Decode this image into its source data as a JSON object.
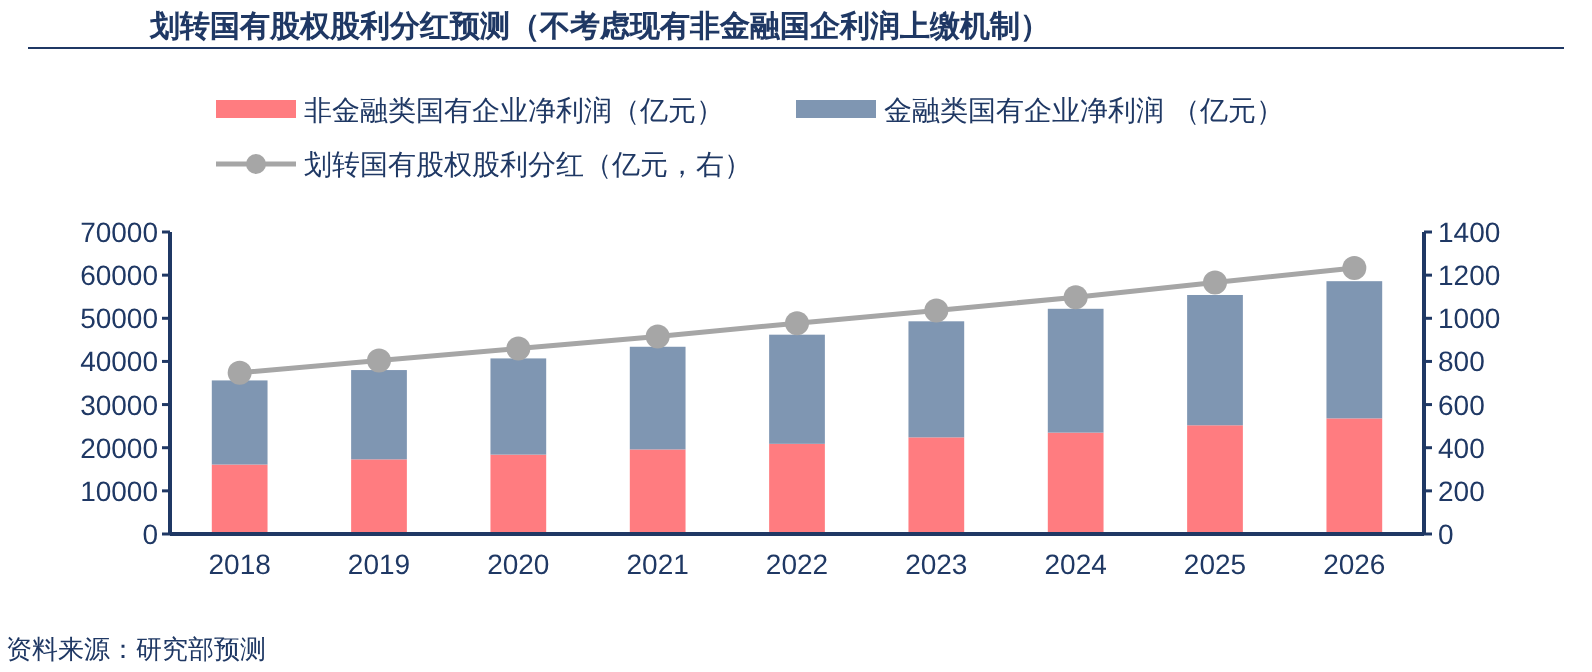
{
  "chart_data": {
    "type": "bar",
    "title": "划转国有股权股利分红预测（不考虑现有非金融国企利润上缴机制）",
    "categories": [
      "2018",
      "2019",
      "2020",
      "2021",
      "2022",
      "2023",
      "2024",
      "2025",
      "2026"
    ],
    "stacked": true,
    "series": [
      {
        "name": "非金融类国有企业净利润（亿元）",
        "color": "#ff7c80",
        "values": [
          16100,
          17300,
          18400,
          19600,
          20900,
          22400,
          23500,
          25200,
          26800
        ]
      },
      {
        "name": "金融类国有企业净利润 （亿元）",
        "color": "#7f96b2",
        "values": [
          19500,
          20700,
          22300,
          23800,
          25300,
          26900,
          28700,
          30200,
          31800
        ]
      },
      {
        "name": "划转国有股权股利分红（亿元，右）",
        "type": "line",
        "axis": "y2",
        "color": "#a6a6a6",
        "values": [
          748,
          804,
          860,
          916,
          977,
          1036,
          1098,
          1166,
          1233
        ]
      }
    ],
    "ylim": [
      0,
      70000
    ],
    "yticks": [
      0,
      10000,
      20000,
      30000,
      40000,
      50000,
      60000,
      70000
    ],
    "y2lim": [
      0,
      1400
    ],
    "y2ticks": [
      0,
      200,
      400,
      600,
      800,
      1000,
      1200,
      1400
    ],
    "marker": "circle",
    "grid": false,
    "legend": "top",
    "annotations": [
      "资料来源：研究部预测"
    ]
  }
}
